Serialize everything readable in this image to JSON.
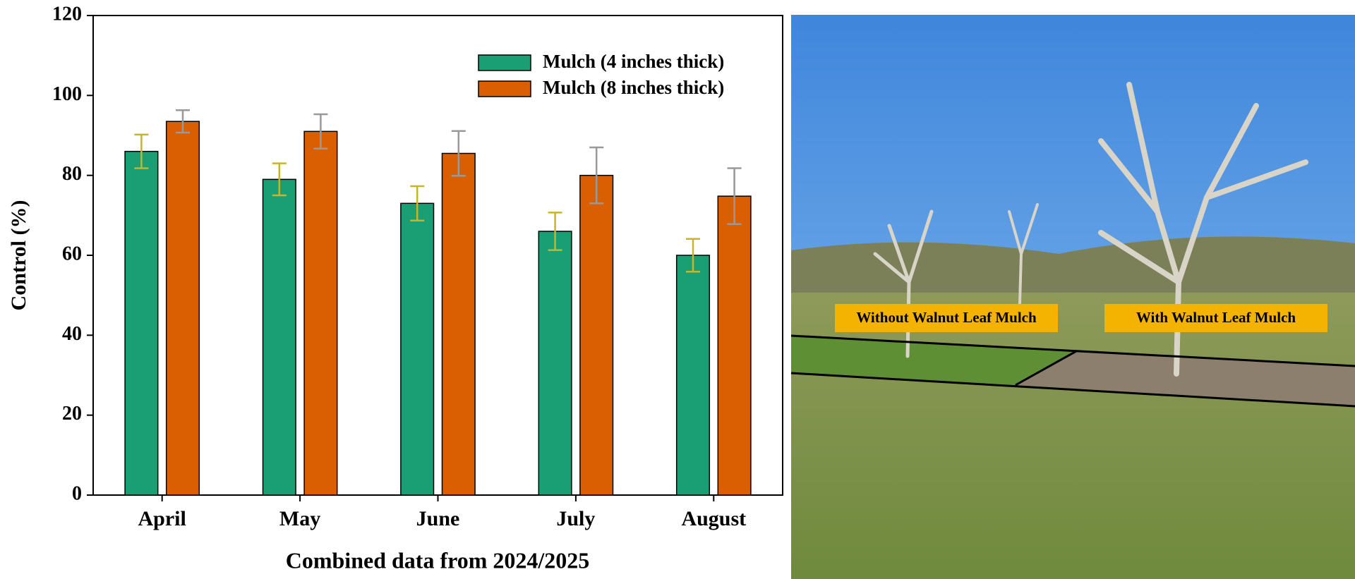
{
  "chart_data": {
    "type": "bar",
    "y_label": "Control (%)",
    "x_label": "Combined data from 2024/2025",
    "categories": [
      "April",
      "May",
      "June",
      "July",
      "August"
    ],
    "series": [
      {
        "name": "Mulch (4 inches thick)",
        "color": "#1a9e74",
        "error_color": "#c8b42a",
        "values": [
          86,
          79,
          73,
          66,
          60
        ],
        "errors": [
          4.2,
          4,
          4.3,
          4.7,
          4.1
        ]
      },
      {
        "name": "Mulch (8 inches thick)",
        "color": "#d95f02",
        "error_color": "#999999",
        "values": [
          93.5,
          91,
          85.5,
          80,
          74.8
        ],
        "errors": [
          2.8,
          4.3,
          5.6,
          7,
          7
        ]
      }
    ],
    "ylim": [
      0,
      120
    ],
    "yticks": [
      0,
      20,
      40,
      60,
      80,
      100,
      120
    ]
  },
  "photo": {
    "labels": [
      "Without Walnut Leaf Mulch",
      "With Walnut Leaf Mulch"
    ]
  }
}
